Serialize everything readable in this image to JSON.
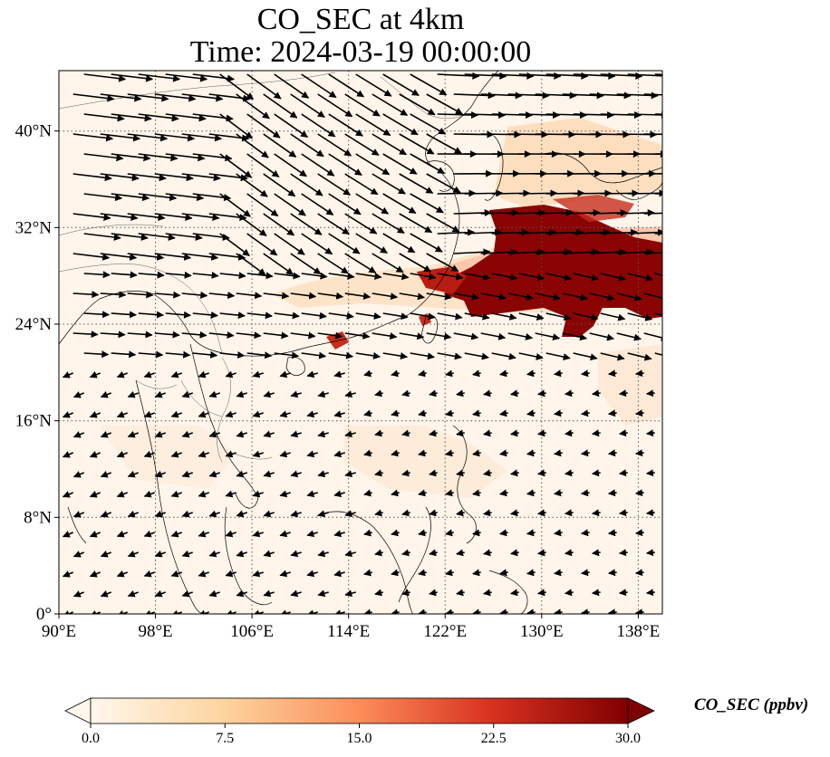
{
  "title": {
    "line1": "CO_SEC at 4km",
    "line2": "Time: 2024-03-19 00:00:00"
  },
  "map": {
    "extent": {
      "lon": [
        90,
        140
      ],
      "lat": [
        0,
        45
      ]
    },
    "lon_ticks": [
      {
        "value": 90,
        "label": "90°E"
      },
      {
        "value": 98,
        "label": "98°E"
      },
      {
        "value": 106,
        "label": "106°E"
      },
      {
        "value": 114,
        "label": "114°E"
      },
      {
        "value": 122,
        "label": "122°E"
      },
      {
        "value": 130,
        "label": "130°E"
      },
      {
        "value": 138,
        "label": "138°E"
      }
    ],
    "lat_ticks": [
      {
        "value": 0,
        "label": "0°"
      },
      {
        "value": 8,
        "label": "8°N"
      },
      {
        "value": 16,
        "label": "16°N"
      },
      {
        "value": 24,
        "label": "24°N"
      },
      {
        "value": 32,
        "label": "32°N"
      },
      {
        "value": 40,
        "label": "40°N"
      }
    ],
    "gridlines": "dotted",
    "background_color": "#fff5eb"
  },
  "colorbar": {
    "label": "CO_SEC (ppbv)",
    "colormap": "OrRd",
    "range": [
      0,
      30
    ],
    "extend": "both",
    "ticks": [
      {
        "value": 0,
        "label": "0.0"
      },
      {
        "value": 7.5,
        "label": "7.5"
      },
      {
        "value": 15,
        "label": "15.0"
      },
      {
        "value": 22.5,
        "label": "22.5"
      },
      {
        "value": 30,
        "label": "30.0"
      }
    ],
    "colors": {
      "low": "#fff7ec",
      "mid1": "#fdd49e",
      "mid2": "#fc8d59",
      "mid3": "#d7301f",
      "high": "#7f0000"
    }
  }
}
